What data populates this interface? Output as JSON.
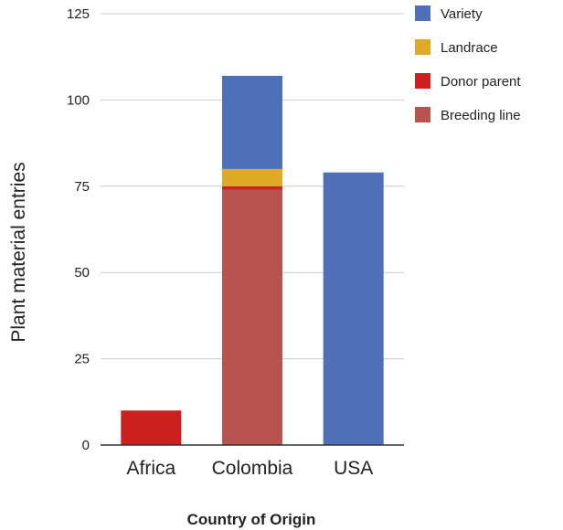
{
  "chart_data": {
    "type": "bar",
    "stacked": true,
    "categories": [
      "Africa",
      "Colombia",
      "USA"
    ],
    "series": [
      {
        "name": "Breeding line",
        "color": "#b85450",
        "values": [
          0,
          74,
          0
        ]
      },
      {
        "name": "Donor parent",
        "color": "#cc2020",
        "values": [
          10,
          1,
          0
        ]
      },
      {
        "name": "Landrace",
        "color": "#dfab27",
        "values": [
          0,
          5,
          0
        ]
      },
      {
        "name": "Variety",
        "color": "#4f6fb8",
        "values": [
          0,
          27,
          79
        ]
      }
    ],
    "legend_order": [
      "Variety",
      "Landrace",
      "Donor parent",
      "Breeding line"
    ],
    "legend_position": "top-right",
    "xlabel": "Country of Origin",
    "ylabel": "Plant material entries",
    "ylim": [
      0,
      125
    ],
    "yticks": [
      0,
      25,
      50,
      75,
      100,
      125
    ],
    "grid": true
  }
}
